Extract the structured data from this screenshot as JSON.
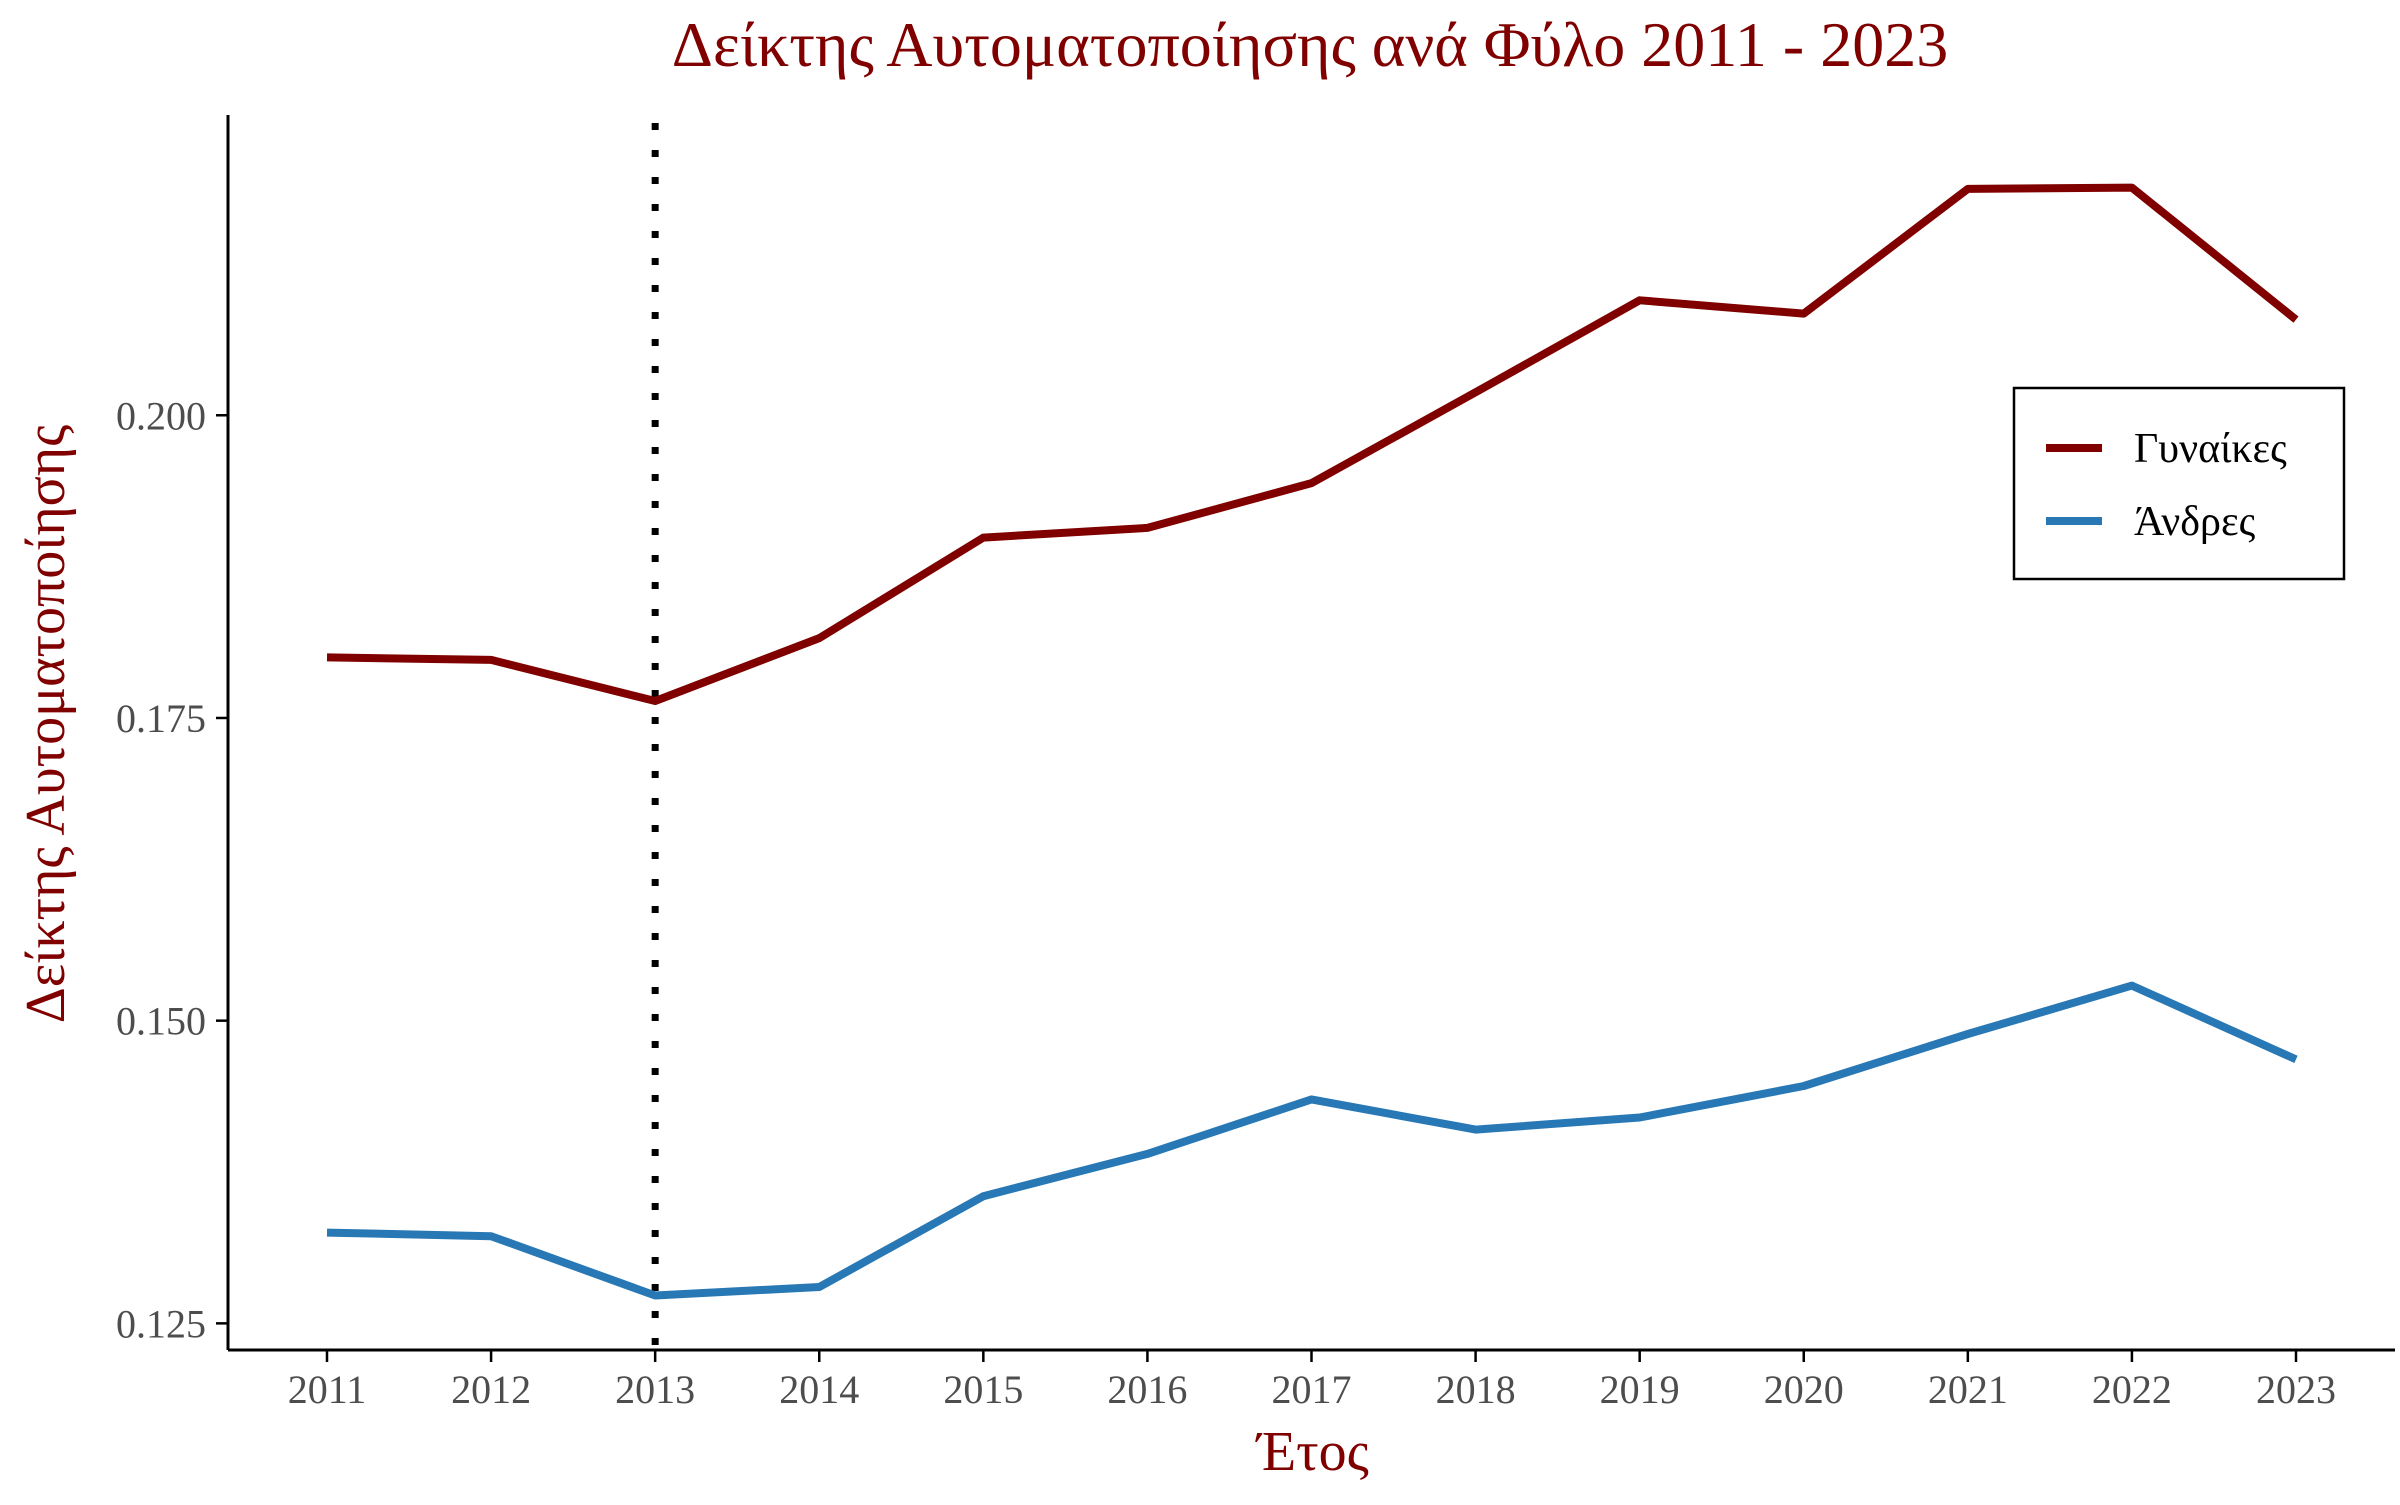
{
  "chart_data": {
    "type": "line",
    "title": "Δείκτης Αυτοματοποίησης ανά Φύλο 2011 - 2023",
    "xlabel": "Έτος",
    "ylabel": "Δείκτης Αυτοματοποίησης",
    "x": [
      "2011",
      "2012",
      "2013",
      "2014",
      "2015",
      "2016",
      "2017",
      "2018",
      "2019",
      "2020",
      "2021",
      "2022",
      "2023"
    ],
    "ylim": [
      0.1228,
      0.2248
    ],
    "yticks": [
      "0.125",
      "0.150",
      "0.175",
      "0.200"
    ],
    "vertical_marker": "2013",
    "vertical_marker_style": "dotted",
    "legend_position": "right",
    "grid": false,
    "series": [
      {
        "name": "Γυναίκες",
        "color": "#800000",
        "values": [
          0.18,
          0.1798,
          0.1764,
          0.1816,
          0.1899,
          0.1907,
          0.1944,
          0.2019,
          0.2095,
          0.2084,
          0.2187,
          0.2188,
          0.2079
        ]
      },
      {
        "name": "Άνδρες",
        "color": "#2878b5",
        "values": [
          0.1325,
          0.1322,
          0.1273,
          0.128,
          0.1355,
          0.139,
          0.1435,
          0.141,
          0.142,
          0.1446,
          0.1489,
          0.1529,
          0.1468
        ]
      }
    ],
    "colors": {
      "title": "#800000",
      "axis_title": "#800000",
      "axis_line": "#000000",
      "tick_label": "#4d4d4d",
      "marker_line": "#000000"
    }
  }
}
